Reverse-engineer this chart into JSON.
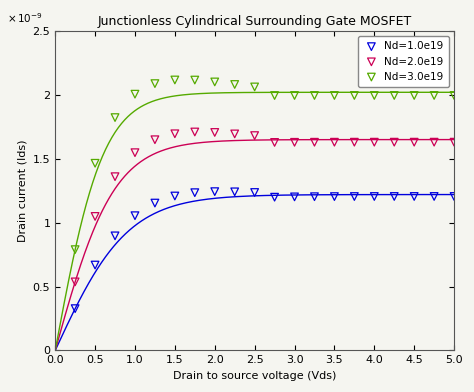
{
  "title": "Junctionless Cylindrical Surrounding Gate MOSFET",
  "xlabel": "Drain to source voltage (Vds)",
  "ylabel": "Drain current (Ids)",
  "xlim": [
    0,
    5
  ],
  "ylim": [
    0,
    2.5e-09
  ],
  "ytick_multiplier": 1e-09,
  "series": [
    {
      "label": "Nd=1.0e19",
      "color_hex": "#0000dd",
      "Isat": 1.22e-09,
      "k": 1.1
    },
    {
      "label": "Nd=2.0e19",
      "color_hex": "#cc0055",
      "Isat": 1.65e-09,
      "k": 1.35
    },
    {
      "label": "Nd=3.0e19",
      "color_hex": "#55aa00",
      "Isat": 2.02e-09,
      "k": 1.65
    }
  ],
  "background_color": "#f5f5f0",
  "legend_loc": "upper right",
  "title_fontsize": 9,
  "axis_fontsize": 8,
  "tick_fontsize": 8,
  "marker_xvals": [
    0.25,
    0.5,
    0.75,
    1.0,
    1.25,
    1.5,
    1.75,
    2.0,
    2.25,
    2.5,
    2.75,
    3.0,
    3.25,
    3.5,
    3.75,
    4.0,
    4.25,
    4.5,
    4.75,
    5.0
  ],
  "yticks": [
    0,
    5e-10,
    1e-09,
    1.5e-09,
    2e-09,
    2.5e-09
  ],
  "ytick_labels": [
    "0",
    "0.5",
    "1",
    "1.5",
    "2",
    "2.5"
  ],
  "xticks": [
    0,
    0.5,
    1.0,
    1.5,
    2.0,
    2.5,
    3.0,
    3.5,
    4.0,
    4.5,
    5.0
  ]
}
